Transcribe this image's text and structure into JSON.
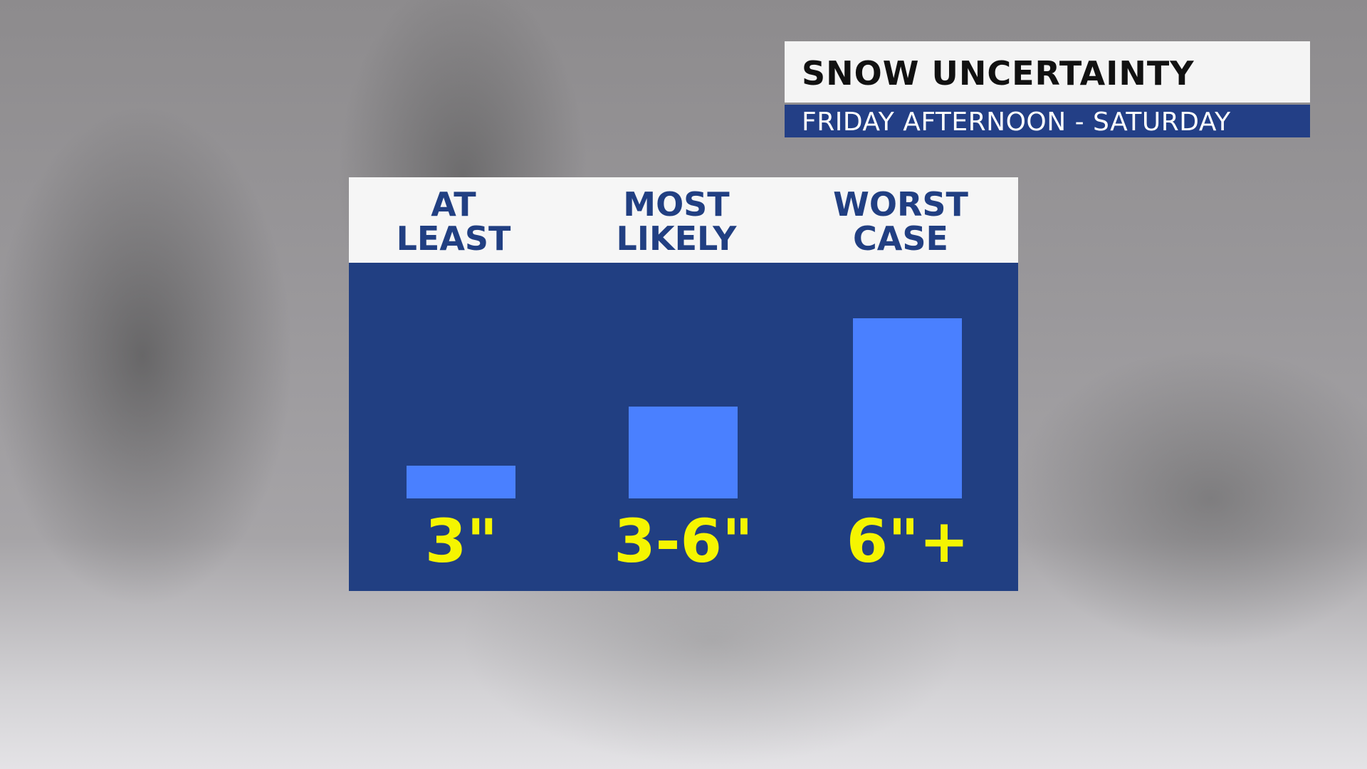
{
  "header": {
    "title": "SNOW UNCERTAINTY",
    "subtitle": "FRIDAY AFTERNOON - SATURDAY"
  },
  "chart_data": {
    "type": "bar",
    "categories": [
      [
        "AT",
        "LEAST"
      ],
      [
        "MOST",
        "LIKELY"
      ],
      [
        "WORST",
        "CASE"
      ]
    ],
    "value_labels": [
      "3\"",
      "3-6\"",
      "6\"+"
    ],
    "bar_levels": [
      0.18,
      0.51,
      1.0
    ],
    "grid": false,
    "colors": {
      "panel": "#213f82",
      "bar": "#4a80ff",
      "value": "#f5f500",
      "header_bg": "#f6f6f6"
    }
  }
}
